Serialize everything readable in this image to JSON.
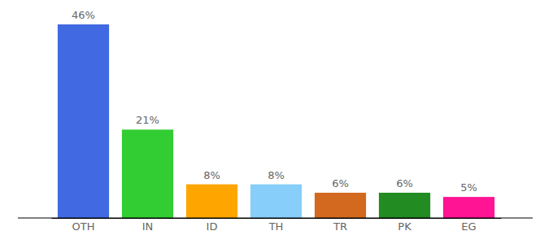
{
  "chart_data": {
    "type": "bar",
    "categories": [
      "OTH",
      "IN",
      "ID",
      "TH",
      "TR",
      "PK",
      "EG"
    ],
    "values": [
      46,
      21,
      8,
      8,
      6,
      6,
      5
    ],
    "value_labels": [
      "46%",
      "21%",
      "8%",
      "8%",
      "6%",
      "6%",
      "5%"
    ],
    "colors": [
      "#4169e1",
      "#32cd32",
      "#ffa500",
      "#87cefa",
      "#d2691e",
      "#228b22",
      "#ff1493"
    ],
    "data_labels": true,
    "tick_labels": "x"
  }
}
